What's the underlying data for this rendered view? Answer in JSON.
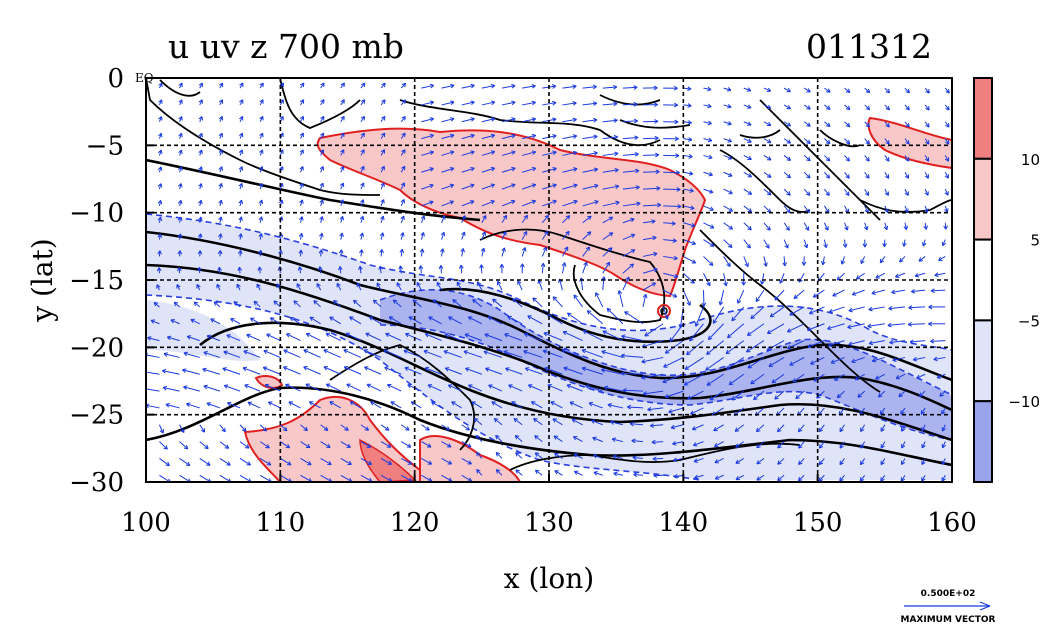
{
  "chart_data": {
    "type": "heatmap",
    "title_left": "u uv z 700 mb",
    "title_right": "011312",
    "xlabel": "x (lon)",
    "ylabel": "y (lat)",
    "xlim": [
      100,
      160
    ],
    "ylim": [
      -30,
      0
    ],
    "x_ticks": [
      100,
      110,
      120,
      130,
      140,
      150,
      160
    ],
    "y_ticks": [
      0,
      -5,
      -10,
      -15,
      -20,
      -25,
      -30
    ],
    "x_tick_labels": [
      "100",
      "110",
      "120",
      "130",
      "140",
      "150",
      "160"
    ],
    "y_tick_labels": [
      "0",
      "−5",
      "−10",
      "−15",
      "−20",
      "−25",
      "−30"
    ],
    "eq_label": "EQ",
    "grid": true,
    "grid_lon": [
      110,
      120,
      130,
      140,
      150
    ],
    "grid_lat": [
      -5,
      -10,
      -15,
      -20,
      -25
    ],
    "colorbar": {
      "placement": "right",
      "levels": [
        {
          "lower": 10,
          "upper": null,
          "color": "#f08080"
        },
        {
          "lower": 5,
          "upper": 10,
          "color": "#f8c8c8"
        },
        {
          "lower": -5,
          "upper": 5,
          "color": "#ffffff"
        },
        {
          "lower": -10,
          "upper": -5,
          "color": "#e0e4f8"
        },
        {
          "lower": null,
          "upper": -10,
          "color": "#9aa4ec"
        }
      ],
      "labels": [
        "10",
        "5",
        "−5",
        "−10"
      ]
    },
    "vector_legend": {
      "value_label": "0.500E+02",
      "caption": "MAXIMUM VECTOR"
    },
    "colors": {
      "positive_strong": "#f08080",
      "positive_weak": "#f8c8c8",
      "negative_weak": "#e0e4f8",
      "negative_strong": "#9aa4ec",
      "positive_contour": "#e02020",
      "negative_contour": "#2a40e0",
      "vector": "#1a3ae0",
      "height_contour": "#000000"
    }
  }
}
